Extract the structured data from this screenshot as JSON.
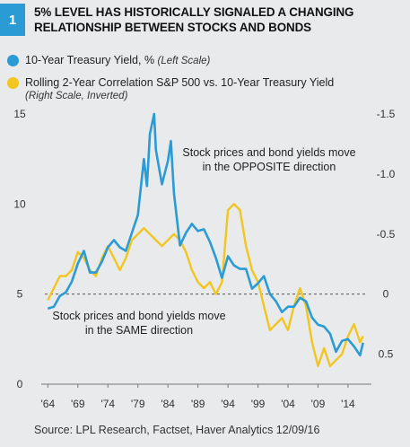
{
  "figure": {
    "number": "1",
    "title": "5% LEVEL HAS HISTORICALLY SIGNALED A CHANGING RELATIONSHIP BETWEEN STOCKS AND BONDS",
    "source": "Source: LPL Research, Factset, Haver Analytics    12/09/16"
  },
  "legend": {
    "yield_label": "10-Year Treasury Yield, %",
    "yield_note": "(Left Scale)",
    "corr_label": "Rolling 2-Year Correlation S&P 500 vs. 10-Year Treasury Yield",
    "corr_note": "(Right Scale, Inverted)"
  },
  "chart_data": {
    "type": "line",
    "annotations": [
      "Stock prices and bond yields move in the OPPOSITE direction",
      "Stock prices and bond yields move in the SAME direction"
    ],
    "x_ticks": [
      "'64",
      "'69",
      "'74",
      "'79",
      "'84",
      "'89",
      "'94",
      "'99",
      "'04",
      "'09",
      "'14"
    ],
    "left_axis": {
      "ylim": [
        0,
        15
      ],
      "ticks": [
        "0",
        "5",
        "10",
        "15"
      ]
    },
    "right_axis": {
      "inverted": true,
      "ylim": [
        0.75,
        -1.5
      ],
      "ticks": [
        "-1.5",
        "-1.0",
        "-0.5",
        "0",
        "0.5"
      ]
    },
    "reference_line": {
      "axis": "left",
      "value": 5,
      "style": "dashed"
    },
    "colors": {
      "yield": "#2a9bd4",
      "correlation": "#f2c51f"
    },
    "series": [
      {
        "name": "10-Year Treasury Yield, %",
        "axis": "left",
        "x": [
          1964,
          1965,
          1966,
          1967,
          1968,
          1969,
          1970,
          1971,
          1972,
          1973,
          1974,
          1975,
          1976,
          1977,
          1978,
          1979,
          1980,
          1980.5,
          1981,
          1981.7,
          1982,
          1983,
          1984,
          1984.5,
          1985,
          1986,
          1987,
          1988,
          1989,
          1990,
          1991,
          1992,
          1993,
          1994,
          1995,
          1996,
          1997,
          1998,
          1999,
          2000,
          2001,
          2002,
          2003,
          2004,
          2005,
          2006,
          2007,
          2008,
          2009,
          2010,
          2011,
          2012,
          2013,
          2014,
          2015,
          2016,
          2016.5
        ],
        "y": [
          4.2,
          4.3,
          4.9,
          5.1,
          5.7,
          6.7,
          7.4,
          6.2,
          6.2,
          6.8,
          7.6,
          8.0,
          7.6,
          7.4,
          8.4,
          9.4,
          12.5,
          11.0,
          13.9,
          15.0,
          13.0,
          11.1,
          12.4,
          13.5,
          10.6,
          7.7,
          8.4,
          8.9,
          8.5,
          8.6,
          7.9,
          7.0,
          5.9,
          7.1,
          6.6,
          6.4,
          6.4,
          5.3,
          5.6,
          6.0,
          5.0,
          4.6,
          4.0,
          4.3,
          4.3,
          4.8,
          4.6,
          3.7,
          3.3,
          3.2,
          2.8,
          1.8,
          2.4,
          2.5,
          2.1,
          1.6,
          2.3
        ]
      },
      {
        "name": "Rolling 2-Year Correlation S&P 500 vs. 10-Year Treasury Yield",
        "axis": "right",
        "x": [
          1964,
          1965,
          1966,
          1967,
          1968,
          1969,
          1970,
          1971,
          1972,
          1973,
          1974,
          1975,
          1976,
          1977,
          1978,
          1979,
          1980,
          1981,
          1982,
          1983,
          1984,
          1985,
          1986,
          1987,
          1988,
          1989,
          1990,
          1991,
          1992,
          1993,
          1994,
          1995,
          1996,
          1997,
          1998,
          1999,
          2000,
          2001,
          2002,
          2003,
          2004,
          2005,
          2006,
          2007,
          2008,
          2009,
          2010,
          2011,
          2012,
          2013,
          2014,
          2015,
          2016,
          2016.5
        ],
        "y": [
          0.05,
          -0.05,
          -0.15,
          -0.15,
          -0.2,
          -0.35,
          -0.3,
          -0.2,
          -0.15,
          -0.3,
          -0.4,
          -0.3,
          -0.2,
          -0.3,
          -0.45,
          -0.5,
          -0.55,
          -0.5,
          -0.45,
          -0.4,
          -0.45,
          -0.5,
          -0.45,
          -0.35,
          -0.2,
          -0.1,
          -0.05,
          -0.1,
          0.0,
          -0.1,
          -0.7,
          -0.75,
          -0.7,
          -0.4,
          -0.2,
          -0.1,
          0.1,
          0.3,
          0.25,
          0.2,
          0.3,
          0.1,
          -0.05,
          0.1,
          0.4,
          0.6,
          0.45,
          0.6,
          0.55,
          0.5,
          0.35,
          0.25,
          0.4,
          0.35
        ]
      }
    ]
  }
}
